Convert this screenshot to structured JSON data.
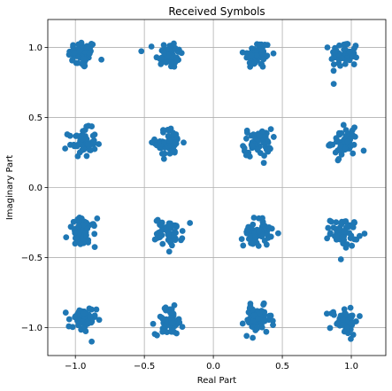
{
  "chart_data": {
    "type": "scatter",
    "title": "Received Symbols",
    "xlabel": "Real Part",
    "ylabel": "Imaginary Part",
    "xlim": [
      -1.2,
      1.25
    ],
    "ylim": [
      -1.2,
      1.2
    ],
    "xticks": [
      -1.0,
      -0.5,
      0.0,
      0.5,
      1.0
    ],
    "xtick_labels": [
      "−1.0",
      "−0.5",
      "0.0",
      "0.5",
      "1.0"
    ],
    "yticks": [
      1.0,
      0.5,
      0.0,
      -0.5,
      -1.0
    ],
    "ytick_labels": [
      "1.0",
      "0.5",
      "0.0",
      "−0.5",
      "−1.0"
    ],
    "grid": true,
    "marker_color": "#1f77b4",
    "constellation": "16-QAM",
    "cluster_centers_x": [
      -0.95,
      -0.32,
      0.32,
      0.95
    ],
    "cluster_centers_y": [
      0.95,
      0.32,
      -0.32,
      -0.95
    ],
    "approx_points_per_cluster": 55,
    "noise_std": 0.05
  }
}
